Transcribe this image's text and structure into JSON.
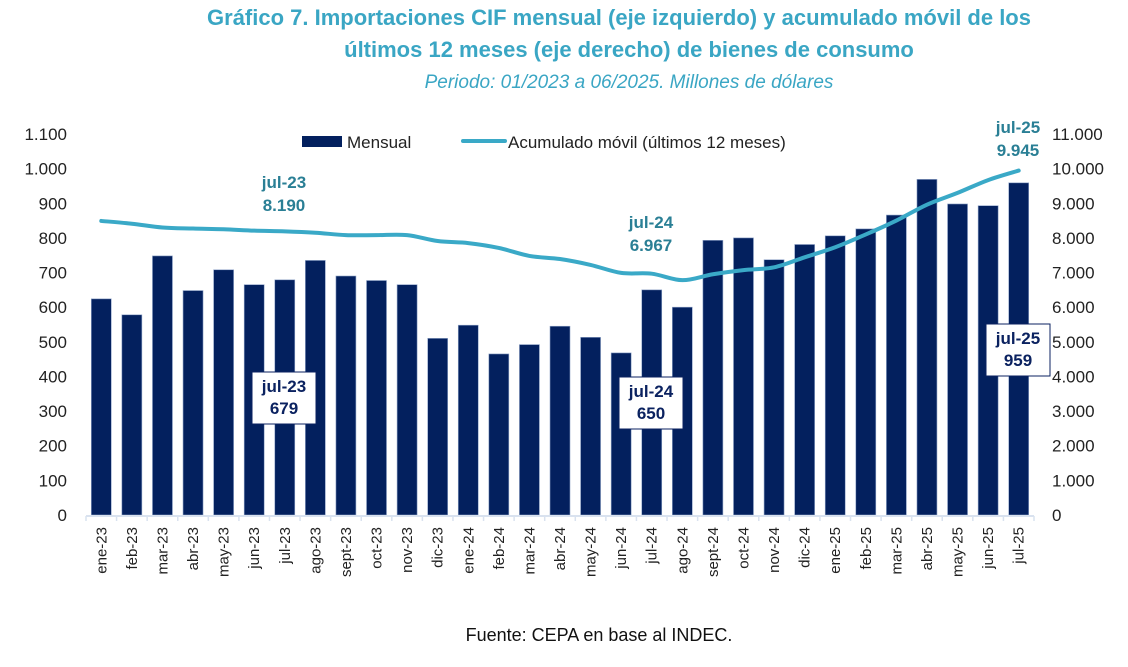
{
  "header": {
    "title_line1": "Gráfico 7. Importaciones CIF mensual (eje izquierdo) y acumulado móvil de los",
    "title_line2": "últimos 12 meses (eje derecho) de bienes de consumo",
    "subtitle": "Periodo: 01/2023 a 06/2025. Millones de dólares"
  },
  "footer": {
    "source": "Fuente: CEPA en base al INDEC."
  },
  "colors": {
    "bar": "#03205e",
    "line": "#3aa9c7",
    "title": "#3aa6c4",
    "line_label": "#2a7f95",
    "bar_label": "#0b2260"
  },
  "chart_data": {
    "type": "bar",
    "title": "Gráfico 7. Importaciones CIF mensual (eje izquierdo) y acumulado móvil de los últimos 12 meses (eje derecho) de bienes de consumo",
    "subtitle": "Periodo: 01/2023 a 06/2025. Millones de dólares",
    "xlabel": "",
    "ylabel": "",
    "y2label": "",
    "ylim": [
      0,
      1100
    ],
    "y2lim": [
      0,
      11000
    ],
    "yticks": [
      "0",
      "100",
      "200",
      "300",
      "400",
      "500",
      "600",
      "700",
      "800",
      "900",
      "1.000",
      "1.100"
    ],
    "y2ticks": [
      "0",
      "1.000",
      "2.000",
      "3.000",
      "4.000",
      "5.000",
      "6.000",
      "7.000",
      "8.000",
      "9.000",
      "10.000",
      "11.000"
    ],
    "grid": false,
    "legend_position": "top-center",
    "categories": [
      "ene-23",
      "feb-23",
      "mar-23",
      "abr-23",
      "may-23",
      "jun-23",
      "jul-23",
      "ago-23",
      "sept-23",
      "oct-23",
      "nov-23",
      "dic-23",
      "ene-24",
      "feb-24",
      "mar-24",
      "abr-24",
      "may-24",
      "jun-24",
      "jul-24",
      "ago-24",
      "sept-24",
      "oct-24",
      "nov-24",
      "dic-24",
      "ene-25",
      "feb-25",
      "mar-25",
      "abr-25",
      "may-25",
      "jun-25",
      "jul-25"
    ],
    "series": [
      {
        "name": "Mensual",
        "type": "bar",
        "axis": "left",
        "values": [
          624,
          578,
          748,
          648,
          708,
          665,
          679,
          735,
          690,
          677,
          665,
          510,
          548,
          465,
          492,
          545,
          513,
          468,
          650,
          600,
          793,
          800,
          737,
          781,
          806,
          826,
          866,
          969,
          898,
          893,
          959
        ]
      },
      {
        "name": "Acumulado móvil (últimos 12 meses)",
        "type": "line",
        "axis": "right",
        "values": [
          8490,
          8410,
          8300,
          8270,
          8250,
          8210,
          8190,
          8150,
          8080,
          8080,
          8080,
          7910,
          7850,
          7710,
          7480,
          7390,
          7220,
          6990,
          6967,
          6780,
          6950,
          7070,
          7150,
          7440,
          7730,
          8100,
          8500,
          8960,
          9300,
          9670,
          9945
        ]
      }
    ],
    "annotations": [
      {
        "series": "Acumulado móvil (últimos 12 meses)",
        "category": "jul-23",
        "label": "jul-23",
        "value": "8.190"
      },
      {
        "series": "Acumulado móvil (últimos 12 meses)",
        "category": "jul-24",
        "label": "jul-24",
        "value": "6.967"
      },
      {
        "series": "Acumulado móvil (últimos 12 meses)",
        "category": "jul-25",
        "label": "jul-25",
        "value": "9.945"
      },
      {
        "series": "Mensual",
        "category": "jul-23",
        "label": "jul-23",
        "value": "679"
      },
      {
        "series": "Mensual",
        "category": "jul-24",
        "label": "jul-24",
        "value": "650"
      },
      {
        "series": "Mensual",
        "category": "jul-25",
        "label": "jul-25",
        "value": "959"
      }
    ]
  }
}
